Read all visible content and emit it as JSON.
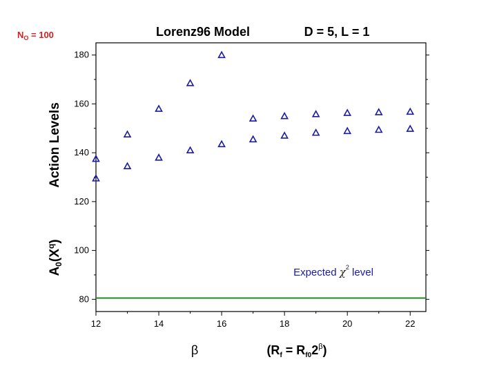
{
  "corner_label": {
    "main": "N",
    "sub": "O",
    "rest": " = 100"
  },
  "chart_data": {
    "type": "scatter",
    "title": "Lorenz96 Model",
    "subtitle": "D = 5, L = 1",
    "ylabel": "Action Levels",
    "ylabel2": {
      "a": "A",
      "a_sub": "0",
      "b": "(X",
      "b_sup": "q",
      "c": ")"
    },
    "xlabel": "β",
    "xlabel2": {
      "a": "(R",
      "a_sub": "f",
      "b": " = R",
      "b_sub": "f0",
      "c": "2",
      "c_sup": "β",
      "d": ")"
    },
    "xlim": [
      12,
      22.5
    ],
    "ylim": [
      75,
      185
    ],
    "xticks": [
      12,
      14,
      16,
      18,
      20,
      22
    ],
    "yticks": [
      80,
      100,
      120,
      140,
      160,
      180
    ],
    "marker": "open-triangle",
    "marker_color": "#1a1aa6",
    "reference_line_color": "#1e8a1e",
    "grid": false,
    "series": [
      {
        "x": [
          12,
          13,
          14,
          15,
          16,
          17,
          18,
          19,
          20,
          21,
          22
        ],
        "y": [
          137.5,
          147.5,
          158,
          168.5,
          180,
          154,
          155,
          155.8,
          156.3,
          156.6,
          156.8
        ]
      },
      {
        "x": [
          12,
          13,
          14,
          15,
          16,
          17,
          18,
          19,
          20,
          21,
          22
        ],
        "y": [
          129.5,
          134.5,
          138,
          141,
          143.5,
          145.5,
          147,
          148.2,
          148.9,
          149.4,
          149.8
        ]
      }
    ],
    "reference_line": {
      "y": 80.5,
      "label_a": "Expected ",
      "label_symbol": "χ",
      "label_sup": "2",
      "label_b": " level"
    }
  }
}
